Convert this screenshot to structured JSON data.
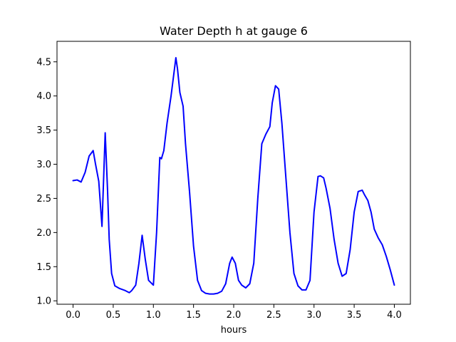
{
  "chart_data": {
    "type": "line",
    "title": "Water Depth h at gauge 6",
    "xlabel": "hours",
    "ylabel": "",
    "xlim": [
      -0.2,
      4.2
    ],
    "ylim": [
      0.95,
      4.8
    ],
    "xticks": [
      0.0,
      0.5,
      1.0,
      1.5,
      2.0,
      2.5,
      3.0,
      3.5,
      4.0
    ],
    "xtick_labels": [
      "0.0",
      "0.5",
      "1.0",
      "1.5",
      "2.0",
      "2.5",
      "3.0",
      "3.5",
      "4.0"
    ],
    "yticks": [
      1.0,
      1.5,
      2.0,
      2.5,
      3.0,
      3.5,
      4.0,
      4.5
    ],
    "ytick_labels": [
      "1.0",
      "1.5",
      "2.0",
      "2.5",
      "3.0",
      "3.5",
      "4.0",
      "4.5"
    ],
    "grid": false,
    "series": [
      {
        "color": "#0000ff",
        "x": [
          0.0,
          0.05,
          0.1,
          0.15,
          0.2,
          0.25,
          0.28,
          0.32,
          0.36,
          0.4,
          0.43,
          0.45,
          0.48,
          0.52,
          0.58,
          0.65,
          0.7,
          0.73,
          0.78,
          0.82,
          0.86,
          0.9,
          0.94,
          1.0,
          1.04,
          1.08,
          1.1,
          1.13,
          1.17,
          1.22,
          1.28,
          1.3,
          1.33,
          1.37,
          1.4,
          1.45,
          1.5,
          1.55,
          1.6,
          1.65,
          1.7,
          1.75,
          1.8,
          1.85,
          1.9,
          1.95,
          1.98,
          2.02,
          2.06,
          2.1,
          2.15,
          2.2,
          2.25,
          2.3,
          2.35,
          2.4,
          2.45,
          2.48,
          2.52,
          2.56,
          2.6,
          2.65,
          2.7,
          2.75,
          2.8,
          2.85,
          2.9,
          2.95,
          3.0,
          3.05,
          3.08,
          3.12,
          3.15,
          3.2,
          3.25,
          3.3,
          3.35,
          3.4,
          3.45,
          3.5,
          3.55,
          3.6,
          3.63,
          3.67,
          3.71,
          3.75,
          3.8,
          3.85,
          3.9,
          3.95,
          4.0
        ],
        "y": [
          2.76,
          2.77,
          2.74,
          2.88,
          3.12,
          3.2,
          3.0,
          2.75,
          2.09,
          3.46,
          2.6,
          1.9,
          1.4,
          1.22,
          1.18,
          1.15,
          1.12,
          1.15,
          1.23,
          1.55,
          1.96,
          1.6,
          1.3,
          1.23,
          2.0,
          3.1,
          3.08,
          3.2,
          3.6,
          4.0,
          4.56,
          4.4,
          4.05,
          3.85,
          3.3,
          2.6,
          1.8,
          1.3,
          1.15,
          1.11,
          1.1,
          1.1,
          1.11,
          1.14,
          1.25,
          1.55,
          1.64,
          1.55,
          1.3,
          1.23,
          1.19,
          1.25,
          1.55,
          2.5,
          3.3,
          3.44,
          3.55,
          3.9,
          4.15,
          4.1,
          3.6,
          2.8,
          2.0,
          1.4,
          1.22,
          1.16,
          1.16,
          1.3,
          2.3,
          2.82,
          2.83,
          2.8,
          2.65,
          2.35,
          1.9,
          1.55,
          1.36,
          1.4,
          1.75,
          2.3,
          2.6,
          2.62,
          2.55,
          2.47,
          2.3,
          2.05,
          1.92,
          1.82,
          1.65,
          1.45,
          1.23
        ]
      }
    ]
  }
}
